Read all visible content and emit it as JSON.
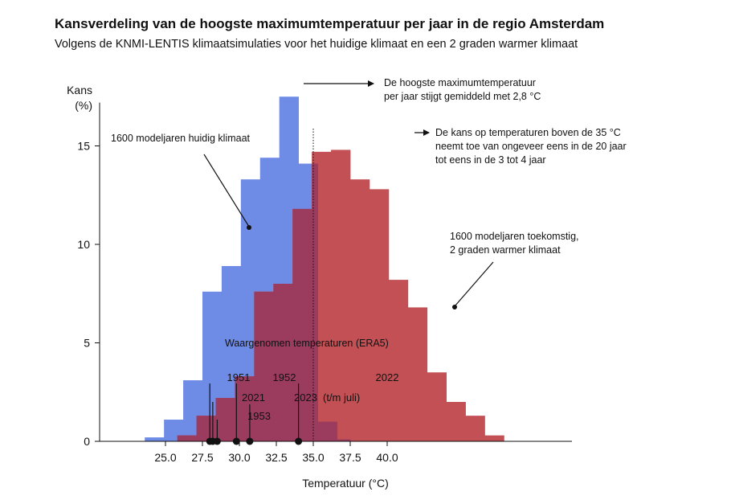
{
  "chart_data": {
    "type": "histogram",
    "title": "Kansverdeling van de hoogste maximumtemperatuur per jaar in de regio Amsterdam",
    "subtitle": "Volgens de KNMI-LENTIS klimaatsimulaties voor het huidige klimaat en een 2 graden warmer klimaat",
    "xlabel": "Temperatuur (°C)",
    "ylabel_line1": "Kans",
    "ylabel_line2": "(%)",
    "xlim": [
      23.0,
      42.0
    ],
    "ylim": [
      0,
      17.5
    ],
    "xticks": [
      25.0,
      27.5,
      30.0,
      32.5,
      35.0,
      37.5,
      40.0
    ],
    "xtick_labels": [
      "25.0",
      "27.5",
      "30.0",
      "32.5",
      "35.0",
      "37.5",
      "40.0"
    ],
    "yticks": [
      0,
      5,
      10,
      15
    ],
    "ytick_labels": [
      "0",
      "5",
      "10",
      "15"
    ],
    "bin_width": 1.3,
    "series": [
      {
        "name": "1600 modeljaren huidig klimaat",
        "color": "#6e8be6",
        "bins_start": 23.6,
        "values": [
          0.2,
          1.1,
          3.1,
          7.6,
          8.9,
          13.3,
          14.4,
          17.5,
          14.1,
          1.0,
          0.1
        ]
      },
      {
        "name": "1600 modeljaren toekomstig, 2 graden warmer klimaat",
        "color": "#c35054",
        "bins_start": 25.8,
        "values": [
          0.3,
          1.3,
          2.2,
          3.3,
          7.6,
          8.0,
          11.8,
          14.7,
          14.8,
          13.3,
          12.8,
          8.2,
          6.8,
          3.5,
          2.0,
          1.3,
          0.3
        ]
      }
    ],
    "overlap_color": "#9b3b5d",
    "threshold_line": 35.0,
    "observed_label": "Waargenomen temperaturen (ERA5)",
    "observed": [
      {
        "label": "1951",
        "value": 28.0
      },
      {
        "label": "2021",
        "value": 28.2
      },
      {
        "label": "1953",
        "value": 28.5
      },
      {
        "label": "1952",
        "value": 29.8
      },
      {
        "label": "2023",
        "suffix": "(t/m juli)",
        "value": 30.7
      },
      {
        "label": "2022",
        "value": 34.0
      }
    ],
    "annotations": {
      "mean_shift_line1": "De hoogste maximumtemperatuur",
      "mean_shift_line2": "per jaar stijgt gemiddeld met 2,8 °C",
      "threshold_line1": "De kans op temperaturen boven de 35 °C",
      "threshold_line2": "neemt toe van ongeveer eens in de 20 jaar",
      "threshold_line3": "tot eens in de 3 tot 4 jaar",
      "current_label": "1600 modeljaren huidig klimaat",
      "future_line1": "1600 modeljaren toekomstig,",
      "future_line2": "2 graden warmer klimaat"
    }
  }
}
